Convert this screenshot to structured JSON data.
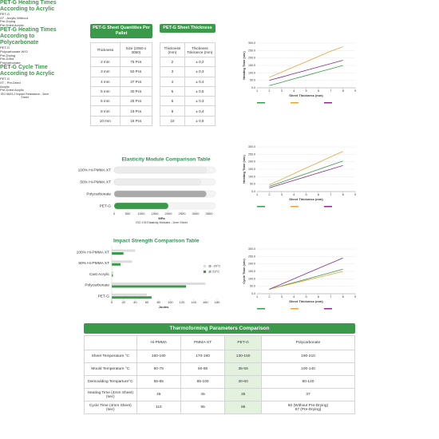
{
  "quantities_table": {
    "title": "PET-G Sheet Quantities Per Pallet",
    "columns": [
      "Thickness",
      "Size (2050 x 3050)"
    ],
    "rows": [
      [
        "2 mm",
        "75 Pcs"
      ],
      [
        "3 mm",
        "50 Pcs"
      ],
      [
        "4 mm",
        "37 Pcs"
      ],
      [
        "5 mm",
        "30 Pcs"
      ],
      [
        "6 mm",
        "25 Pcs"
      ],
      [
        "8 mm",
        "19 Pcs"
      ],
      [
        "10 mm",
        "15 Pcs"
      ]
    ]
  },
  "thickness_table": {
    "title": "PET-G Sheet Thickness",
    "columns": [
      "Thickness (mm)",
      "Thickness Tolerance (mm)"
    ],
    "rows": [
      [
        "2",
        "± 0,2"
      ],
      [
        "3",
        "± 0,3"
      ],
      [
        "4",
        "± 0,4"
      ],
      [
        "5",
        "± 0,5"
      ],
      [
        "6",
        "± 0,3"
      ],
      [
        "8",
        "± 0,4"
      ],
      [
        "10",
        "± 0,5"
      ]
    ]
  },
  "chart_data": [
    {
      "type": "line",
      "title": "PET-G Heating Times According to Acrylic",
      "ylabel": "Heating Time (sec)",
      "xlabel": "Sheet Thickness (mm)",
      "x": [
        2,
        3,
        4,
        5,
        6,
        7,
        8
      ],
      "xlim": [
        1,
        9
      ],
      "xticks": [
        1,
        2,
        3,
        4,
        5,
        6,
        7,
        8,
        9
      ],
      "ylim": [
        0,
        300
      ],
      "yticks": [
        {
          "value": 0,
          "label": "0.0"
        },
        {
          "value": 50,
          "label": "50.0"
        },
        {
          "value": 100,
          "label": "100.0"
        },
        {
          "value": 150,
          "label": "150.0"
        },
        {
          "value": 200,
          "label": "200.0"
        },
        {
          "value": 250,
          "label": "250.0"
        },
        {
          "value": 300,
          "label": "300.0"
        }
      ],
      "grid": true,
      "series": [
        {
          "name": "PET-G",
          "color": "#3a9a4a",
          "values": [
            15,
            37,
            60,
            82,
            105,
            127,
            150
          ]
        },
        {
          "name": "XT - Acrylic Without Pre-Drying",
          "color": "#e8a33a",
          "values": [
            70,
            105,
            140,
            175,
            210,
            245,
            275
          ]
        },
        {
          "name": "Pre-Dried Acrylic",
          "color": "#8a2a8c",
          "values": [
            50,
            72,
            95,
            117,
            140,
            162,
            185
          ]
        }
      ]
    },
    {
      "type": "line",
      "title": "PET-G Heating Times According to Polycarbonate",
      "ylabel": "Heating Time (sec)",
      "xlabel": "Sheet Thickness (mm)",
      "x": [
        2,
        3,
        4,
        5,
        6,
        7,
        8
      ],
      "xlim": [
        1,
        9
      ],
      "xticks": [
        1,
        2,
        3,
        4,
        5,
        6,
        7,
        8,
        9
      ],
      "ylim": [
        0,
        300
      ],
      "yticks": [
        {
          "value": 0,
          "label": "0.0"
        },
        {
          "value": 50,
          "label": "50.0"
        },
        {
          "value": 100,
          "label": "100.0"
        },
        {
          "value": 150,
          "label": "150.0"
        },
        {
          "value": 200,
          "label": "200.0"
        },
        {
          "value": 250,
          "label": "250.0"
        },
        {
          "value": 300,
          "label": "300.0"
        }
      ],
      "grid": true,
      "series": [
        {
          "name": "PET-G",
          "color": "#3a9a4a",
          "values": [
            35,
            63,
            92,
            120,
            148,
            177,
            205
          ]
        },
        {
          "name": "Polycarbonate W/O Pre-Drying",
          "color": "#e8a33a",
          "values": [
            45,
            82,
            120,
            158,
            195,
            233,
            270
          ]
        },
        {
          "name": "Pre-Dried Polycarbonate",
          "color": "#8a2a8c",
          "values": [
            25,
            50,
            75,
            100,
            125,
            150,
            175
          ]
        }
      ]
    },
    {
      "type": "line",
      "title": "PET-G Cycle Time According to Acrylic",
      "ylabel": "Cycle Time (sec)",
      "xlabel": "Sheet Thickness (mm)",
      "x": [
        2,
        3,
        4,
        5,
        6,
        7,
        8
      ],
      "xlim": [
        1,
        9
      ],
      "xticks": [
        1,
        2,
        3,
        4,
        5,
        6,
        7,
        8,
        9
      ],
      "ylim": [
        0,
        300
      ],
      "yticks": [
        {
          "value": 0,
          "label": "0.0"
        },
        {
          "value": 50,
          "label": "50.0"
        },
        {
          "value": 100,
          "label": "100.0"
        },
        {
          "value": 150,
          "label": "150.0"
        },
        {
          "value": 200,
          "label": "200.0"
        },
        {
          "value": 250,
          "label": "250.0"
        },
        {
          "value": 300,
          "label": "300.0"
        }
      ],
      "grid": true,
      "series": [
        {
          "name": "PET-G",
          "color": "#3a9a4a",
          "values": [
            30,
            52,
            75,
            97,
            120,
            142,
            165
          ]
        },
        {
          "name": "XT - Pre-Dried Acrylic",
          "color": "#e8a33a",
          "values": [
            30,
            50,
            70,
            90,
            110,
            130,
            150
          ]
        },
        {
          "name": "Pre-Dried Acrylic",
          "color": "#8a2a8c",
          "values": [
            30,
            65,
            100,
            135,
            170,
            205,
            240
          ]
        }
      ]
    },
    {
      "type": "barh",
      "title": "Elasticity Module Comparison Table",
      "xlabel": "MPa",
      "note": "ISO 178 Elasticity Modules - 2mm Sheet",
      "categories": [
        "100% Hi-PMMA XT",
        "50% Hi-PMMA XT",
        "Polycarbonate",
        "PET-G"
      ],
      "values": [
        3400,
        3200,
        3400,
        2000
      ],
      "colors": [
        "#ececec",
        "#ececec",
        "#a9a9a9",
        "#3a9a4a"
      ],
      "xlim": [
        0,
        3500
      ],
      "xticks": [
        0,
        500,
        1000,
        1500,
        2000,
        2500,
        3000,
        3500
      ]
    },
    {
      "type": "grouped_barh",
      "title": "Impact Strength Comparison Table",
      "xlabel": "Joules",
      "note": "ISO 6603-2 Impact Resistance - 3mm Sheet",
      "categories": [
        "100% Hi-PMMA XT",
        "50% Hi-PMMA XT",
        "Cast Acrylic",
        "Polycarbonate",
        "PET-G"
      ],
      "xlim": [
        0,
        180
      ],
      "xticks": [
        0,
        20,
        40,
        60,
        80,
        100,
        120,
        140,
        160,
        180
      ],
      "series": [
        {
          "name": "@ -20°C",
          "color": "#dcdcdc",
          "values": [
            40,
            35,
            3,
            160,
            60
          ]
        },
        {
          "name": "@ 23°C",
          "color": "#3a9a4a",
          "values": [
            20,
            15,
            2,
            127,
            68
          ]
        }
      ]
    }
  ],
  "thermo_table": {
    "title": "Thermoforming Parameters Comparison",
    "columns": [
      "Hi-PMMA",
      "PMMA-XT",
      "PET-G",
      "Polycarbonate"
    ],
    "rows": [
      {
        "label": "Sheet Temperature °C",
        "values": [
          "160-190",
          "170-190",
          "130-160",
          "190-210"
        ]
      },
      {
        "label": "Mould Temperature °C",
        "values": [
          "60-75",
          "60-85",
          "35-55",
          "100-140"
        ]
      },
      {
        "label": "Demoulding Temparture°C",
        "values": [
          "55-85",
          "65-100",
          "30-60",
          "80-120"
        ]
      },
      {
        "label": "Heating Time (4mm Sheet) (sec)",
        "values": [
          "45",
          "45",
          "35",
          "37"
        ]
      },
      {
        "label": "Cycle Time (4mm Sheet) (sec)",
        "values": [
          "110",
          "95",
          "95",
          [
            "80 (Without Pre-Drying)",
            "67 (Pre-Drying)"
          ]
        ]
      }
    ]
  }
}
